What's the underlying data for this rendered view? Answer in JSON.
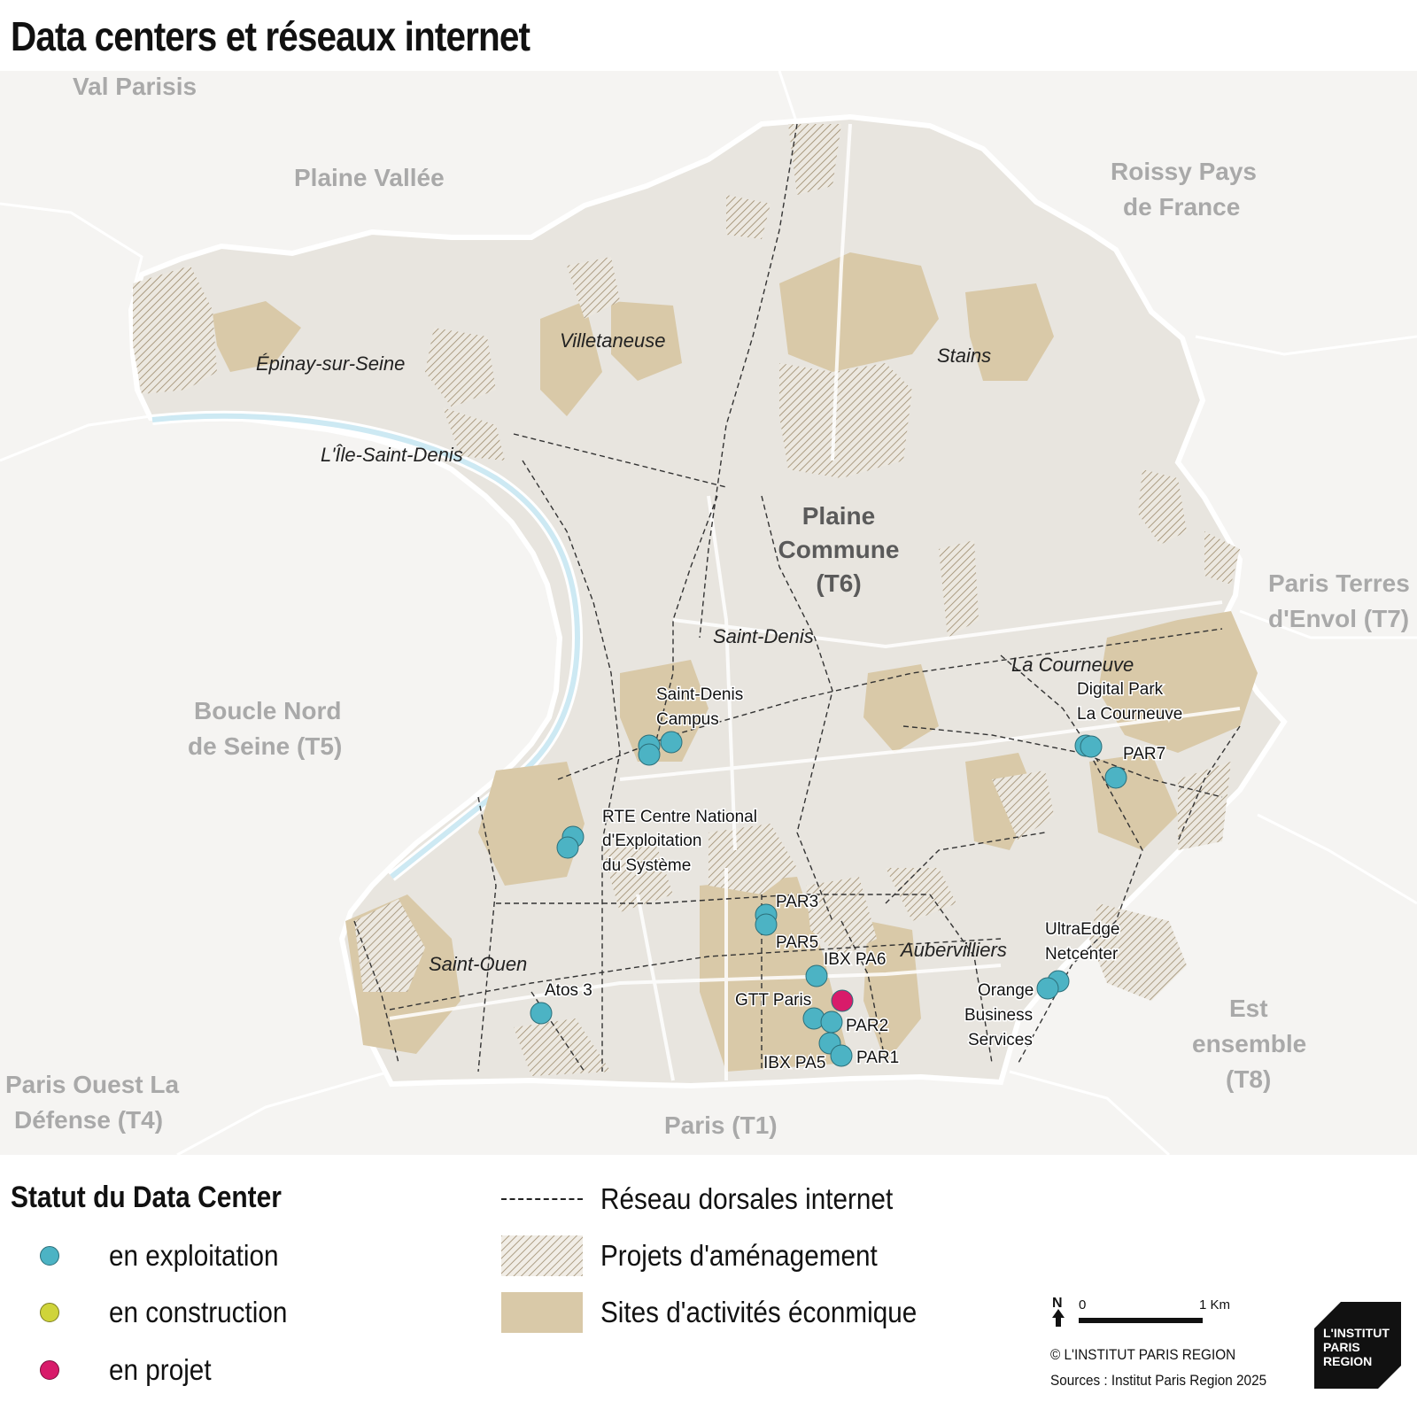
{
  "title": "Data centers et réseaux internet",
  "map": {
    "territories": {
      "val_parisis": "Val Parisis",
      "plaine_vallee": "Plaine Vallée",
      "roissy_l1": "Roissy Pays",
      "roissy_l2": "de France",
      "plaine_commune_l1": "Plaine",
      "plaine_commune_l2": "Commune",
      "plaine_commune_l3": "(T6)",
      "paris_terres_l1": "Paris Terres",
      "paris_terres_l2": "d'Envol (T7)",
      "boucle_nord_l1": "Boucle Nord",
      "boucle_nord_l2": "de Seine (T5)",
      "est_ensemble_l1": "Est",
      "est_ensemble_l2": "ensemble",
      "est_ensemble_l3": "(T8)",
      "paris_ouest_l1": "Paris Ouest La",
      "paris_ouest_l2": "Défense (T4)",
      "paris": "Paris (T1)"
    },
    "communes": {
      "epinay": "Épinay-sur-Seine",
      "villetaneuse": "Villetaneuse",
      "stains": "Stains",
      "ile_saint_denis": "L'Île-Saint-Denis",
      "saint_denis": "Saint-Denis",
      "la_courneuve": "La Courneuve",
      "aubervilliers": "Aubervilliers",
      "saint_ouen": "Saint-Ouen"
    },
    "datacenters": [
      {
        "label_lines": [
          "Saint-Denis",
          "Campus"
        ],
        "status": "en exploitation"
      },
      {
        "label_lines": [
          "RTE Centre National",
          "d'Exploitation",
          "du Système"
        ],
        "status": "en exploitation"
      },
      {
        "label_lines": [
          "Digital Park",
          "La Courneuve"
        ],
        "status": "en exploitation"
      },
      {
        "label_lines": [
          "PAR7"
        ],
        "status": "en exploitation"
      },
      {
        "label_lines": [
          "PAR3"
        ],
        "status": "en exploitation"
      },
      {
        "label_lines": [
          "PAR5"
        ],
        "status": "en exploitation"
      },
      {
        "label_lines": [
          "IBX PA6"
        ],
        "status": "en exploitation"
      },
      {
        "label_lines": [
          "GTT Paris"
        ],
        "status": "en projet"
      },
      {
        "label_lines": [
          "PAR2"
        ],
        "status": "en exploitation"
      },
      {
        "label_lines": [
          "IBX PA5"
        ],
        "status": "en exploitation"
      },
      {
        "label_lines": [
          "PAR1"
        ],
        "status": "en exploitation"
      },
      {
        "label_lines": [
          "Atos 3"
        ],
        "status": "en exploitation"
      },
      {
        "label_lines": [
          "UltraEdge",
          "Netcenter"
        ],
        "status": "en exploitation"
      },
      {
        "label_lines": [
          "Orange",
          "Business",
          "Services"
        ],
        "status": "en exploitation"
      }
    ]
  },
  "legend": {
    "status_title": "Statut du Data Center",
    "statuses": [
      {
        "label": "en exploitation",
        "color": "#4cb3c4"
      },
      {
        "label": "en construction",
        "color": "#cfd43a"
      },
      {
        "label": "en projet",
        "color": "#d81b6a"
      }
    ],
    "layers": {
      "network": "Réseau dorsales internet",
      "projects": "Projets d'aménagement",
      "sites": "Sites d'activités éconmique"
    }
  },
  "scale": {
    "north": "N",
    "start": "0",
    "end": "1 Km"
  },
  "credits": {
    "copyright": "© L'INSTITUT PARIS REGION",
    "sources": "Sources : Institut Paris Region 2025"
  },
  "logo": {
    "line1": "L'INSTITUT",
    "line2": "PARIS",
    "line3": "REGION"
  },
  "colors": {
    "background": "#f5f4f2",
    "commune_fill": "#e8e5df",
    "activity_sites": "#d9c9a8",
    "seine": "#cde9f3",
    "operating": "#4cb3c4",
    "construction": "#cfd43a",
    "project": "#d81b6a"
  }
}
